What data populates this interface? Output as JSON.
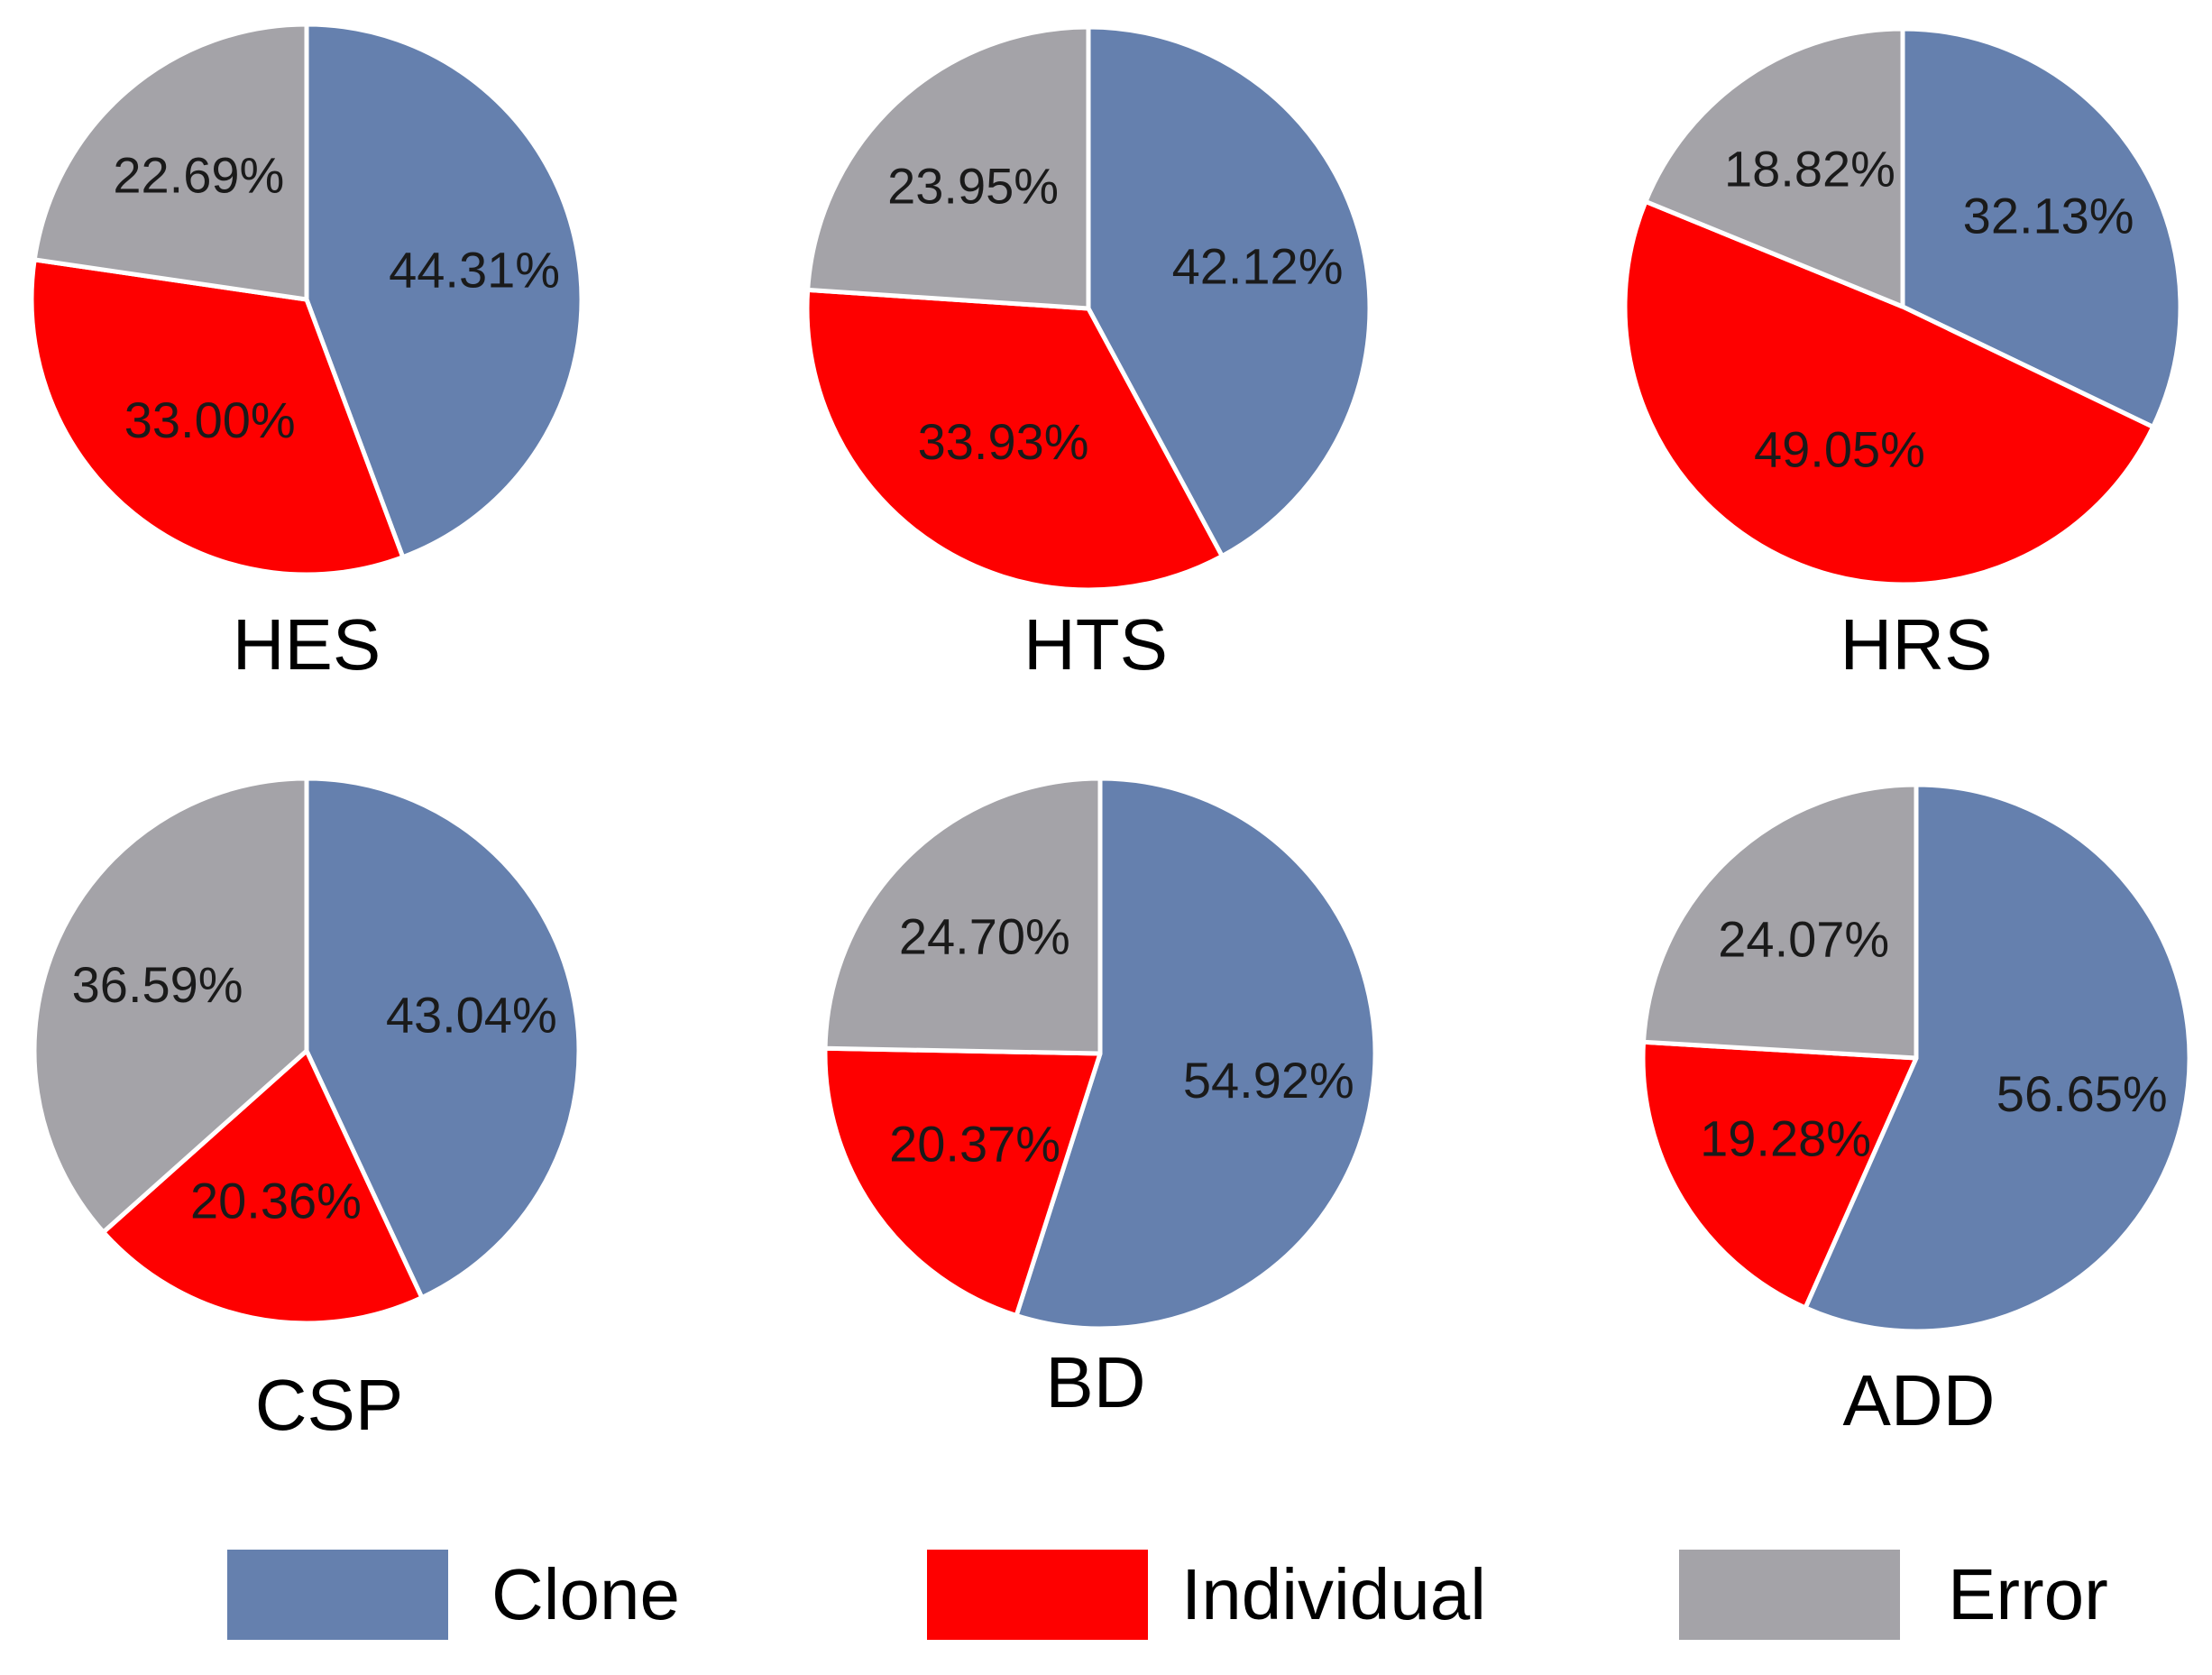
{
  "colors": {
    "clone": "#6580ae",
    "individual": "#fe0000",
    "error": "#a4a3a8"
  },
  "legend": [
    {
      "label": "Clone",
      "color": "#6580ae"
    },
    {
      "label": "Individual",
      "color": "#fe0000"
    },
    {
      "label": "Error",
      "color": "#a4a3a8"
    }
  ],
  "chart_data": [
    {
      "type": "pie",
      "title": "HES",
      "categories": [
        "Clone",
        "Individual",
        "Error"
      ],
      "values": [
        44.31,
        33.0,
        22.69
      ],
      "labels": [
        "44.31%",
        "33.00%",
        "22.69%"
      ]
    },
    {
      "type": "pie",
      "title": "HTS",
      "categories": [
        "Clone",
        "Individual",
        "Error"
      ],
      "values": [
        42.12,
        33.93,
        23.95
      ],
      "labels": [
        "42.12%",
        "33.93%",
        "23.95%"
      ]
    },
    {
      "type": "pie",
      "title": "HRS",
      "categories": [
        "Clone",
        "Individual",
        "Error"
      ],
      "values": [
        32.13,
        49.05,
        18.82
      ],
      "labels": [
        "32.13%",
        "49.05%",
        "18.82%"
      ]
    },
    {
      "type": "pie",
      "title": "CSP",
      "categories": [
        "Clone",
        "Individual",
        "Error"
      ],
      "values": [
        43.04,
        20.36,
        36.59
      ],
      "labels": [
        "43.04%",
        "20.36%",
        "36.59%"
      ]
    },
    {
      "type": "pie",
      "title": "BD",
      "categories": [
        "Clone",
        "Individual",
        "Error"
      ],
      "values": [
        54.92,
        20.37,
        24.7
      ],
      "labels": [
        "54.92%",
        "20.37%",
        "24.70%"
      ]
    },
    {
      "type": "pie",
      "title": "ADD",
      "categories": [
        "Clone",
        "Individual",
        "Error"
      ],
      "values": [
        56.65,
        19.28,
        24.07
      ],
      "labels": [
        "56.65%",
        "19.28%",
        "24.07%"
      ]
    }
  ]
}
